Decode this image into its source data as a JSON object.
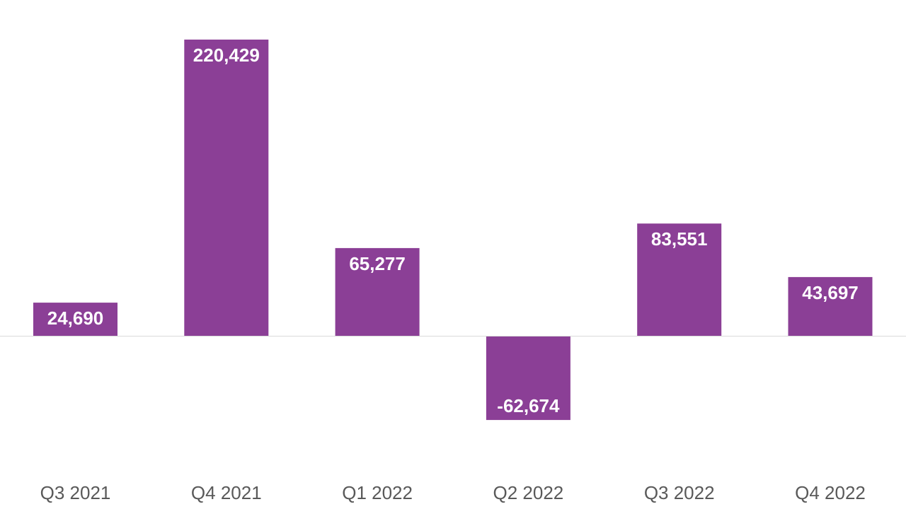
{
  "chart_data": {
    "type": "bar",
    "categories": [
      "Q3 2021",
      "Q4 2021",
      "Q1 2022",
      "Q2 2022",
      "Q3 2022",
      "Q4 2022"
    ],
    "values": [
      24690,
      220429,
      65277,
      -62674,
      83551,
      43697
    ],
    "value_labels": [
      "24,690",
      "220,429",
      "65,277",
      "-62,674",
      "83,551",
      "43,697"
    ],
    "title": "",
    "xlabel": "",
    "ylabel": "",
    "ylim": [
      -130000,
      250000
    ],
    "grid": false,
    "legend": "none",
    "colors": {
      "bar": "#8b3f96",
      "value_label": "#ffffff",
      "category_label": "#595959",
      "baseline": "#d9d9d9"
    }
  }
}
